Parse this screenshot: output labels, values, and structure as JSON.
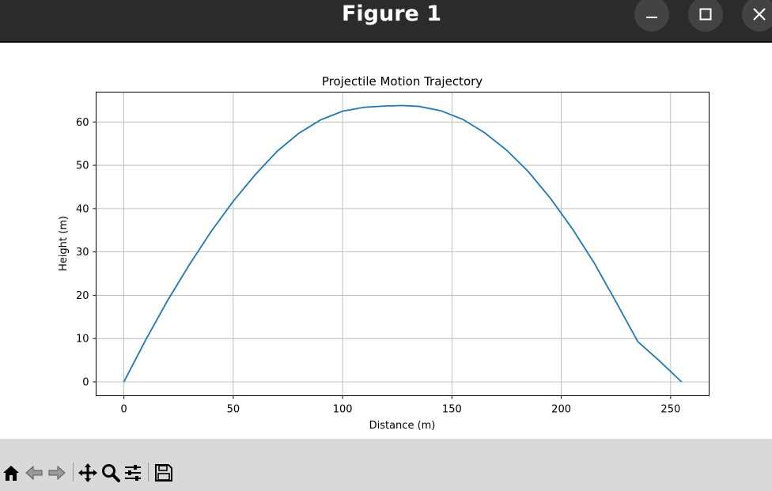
{
  "window": {
    "title": "Figure 1",
    "buttons": [
      "minimize",
      "maximize",
      "close"
    ]
  },
  "toolbar": {
    "tools": [
      {
        "name": "home-icon"
      },
      {
        "name": "back-arrow-icon"
      },
      {
        "name": "forward-arrow-icon"
      },
      {
        "name": "pan-move-icon"
      },
      {
        "name": "zoom-magnifier-icon"
      },
      {
        "name": "configure-subplots-icon"
      },
      {
        "name": "save-floppy-icon"
      }
    ]
  },
  "chart_data": {
    "type": "line",
    "title": "Projectile Motion Trajectory",
    "xlabel": "Distance (m)",
    "ylabel": "Height (m)",
    "xlim": [
      -12.7,
      267.6
    ],
    "ylim": [
      -3.2,
      66.9
    ],
    "xticks": [
      0,
      50,
      100,
      150,
      200,
      250
    ],
    "yticks": [
      0,
      10,
      20,
      30,
      40,
      50,
      60
    ],
    "grid": true,
    "line_color": "#1f77b4",
    "series": [
      {
        "name": "",
        "x": [
          0,
          10,
          20,
          30,
          40,
          50,
          60,
          70,
          80,
          90,
          100,
          110,
          120,
          127.5,
          135,
          145,
          155,
          165,
          175,
          185,
          195,
          205,
          215,
          225,
          235,
          245,
          255
        ],
        "y": [
          0,
          9.7,
          18.8,
          27.1,
          34.8,
          41.7,
          47.8,
          53.2,
          57.4,
          60.5,
          62.5,
          63.4,
          63.7,
          63.8,
          63.6,
          62.6,
          60.6,
          57.5,
          53.5,
          48.5,
          42.4,
          35.4,
          27.5,
          18.5,
          9.3,
          4.8,
          0
        ]
      }
    ]
  }
}
